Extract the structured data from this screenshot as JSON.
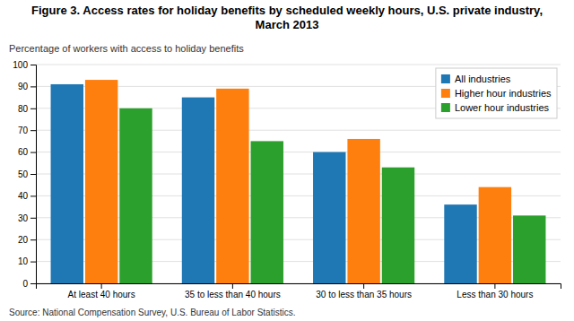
{
  "chart_data": {
    "type": "bar",
    "title": "Figure 3. Access rates for holiday benefits by scheduled weekly hours, U.S. private industry, March 2013",
    "ylabel": "Percentage of workers with access to holiday benefits",
    "source": "Source: National Compensation Survey, U.S. Bureau of Labor Statistics.",
    "categories": [
      "At least 40 hours",
      "35 to less than 40 hours",
      "30 to less than 35 hours",
      "Less than 30 hours"
    ],
    "series": [
      {
        "name": "All industries",
        "values": [
          91,
          85,
          60,
          36
        ]
      },
      {
        "name": "Higher hour industries",
        "values": [
          93,
          89,
          66,
          44
        ]
      },
      {
        "name": "Lower hour industries",
        "values": [
          80,
          65,
          53,
          31
        ]
      }
    ],
    "ylim": [
      0,
      100
    ],
    "yticks": [
      0,
      10,
      20,
      30,
      40,
      50,
      60,
      70,
      80,
      90,
      100
    ],
    "grid": true,
    "legend": "upper-right"
  }
}
